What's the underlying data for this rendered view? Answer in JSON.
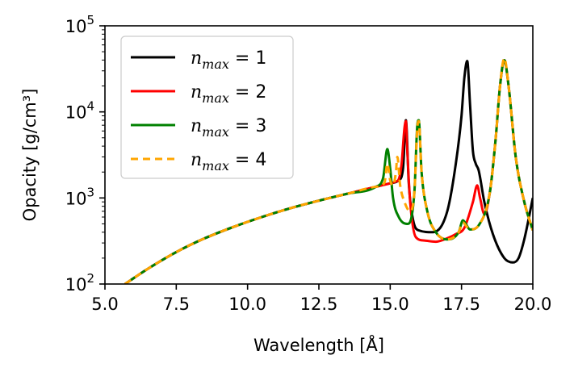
{
  "chart_data": {
    "type": "line",
    "xlabel": "Wavelength [Å]",
    "ylabel": "Opacity [g/cm³]",
    "xlim": [
      5.0,
      20.0
    ],
    "ylim": [
      100,
      100000
    ],
    "yscale": "log",
    "x_ticks": [
      "5.0",
      "7.5",
      "10.0",
      "12.5",
      "15.0",
      "17.5",
      "20.0"
    ],
    "y_ticks": [
      {
        "value": 100,
        "base": "10",
        "exp": "2"
      },
      {
        "value": 1000,
        "base": "10",
        "exp": "3"
      },
      {
        "value": 10000,
        "base": "10",
        "exp": "4"
      },
      {
        "value": 100000,
        "base": "10",
        "exp": "5"
      }
    ],
    "legend_position": "top-left",
    "series": [
      {
        "name": "n_max = 1",
        "label": "n",
        "sub": "max",
        "rhs": " = 1",
        "color": "#000000",
        "dash": "none",
        "x": [
          5.7,
          6.5,
          7.5,
          8.5,
          9.5,
          10.5,
          11.5,
          12.5,
          13.5,
          14.5,
          15.0,
          15.3,
          15.45,
          15.55,
          15.65,
          15.8,
          16.0,
          16.5,
          17.0,
          17.3,
          17.5,
          17.6,
          17.7,
          17.8,
          17.9,
          18.0,
          18.1,
          18.3,
          18.6,
          19.0,
          19.3,
          19.5,
          19.7,
          20.0
        ],
        "y": [
          100,
          150,
          235,
          340,
          460,
          600,
          760,
          930,
          1120,
          1350,
          1480,
          1600,
          2200,
          8000,
          1500,
          560,
          420,
          400,
          700,
          2500,
          9000,
          25000,
          39000,
          12000,
          3500,
          2500,
          2100,
          900,
          380,
          200,
          178,
          200,
          330,
          1000
        ]
      },
      {
        "name": "n_max = 2",
        "label": "n",
        "sub": "max",
        "rhs": " = 2",
        "color": "#ff0000",
        "dash": "none",
        "x": [
          5.7,
          6.5,
          7.5,
          8.5,
          9.5,
          10.5,
          11.5,
          12.5,
          13.5,
          14.5,
          15.0,
          15.2,
          15.3,
          15.4,
          15.5,
          15.55,
          15.6,
          15.7,
          15.9,
          16.2,
          16.6,
          17.0,
          17.3,
          17.6,
          17.9,
          18.05,
          18.15,
          18.3,
          18.5,
          18.7,
          18.85,
          19.0,
          19.15,
          19.4,
          19.7,
          20.0
        ],
        "y": [
          100,
          150,
          235,
          340,
          460,
          600,
          760,
          930,
          1120,
          1350,
          1480,
          1550,
          1650,
          2500,
          6500,
          7800,
          3500,
          900,
          350,
          320,
          310,
          340,
          380,
          450,
          900,
          1400,
          1000,
          650,
          1200,
          5000,
          20000,
          40000,
          20000,
          3000,
          900,
          420
        ]
      },
      {
        "name": "n_max = 3",
        "label": "n",
        "sub": "max",
        "rhs": " = 3",
        "color": "#008000",
        "dash": "none",
        "x": [
          5.7,
          6.5,
          7.5,
          8.5,
          9.5,
          10.5,
          11.5,
          12.5,
          13.5,
          14.5,
          14.75,
          14.9,
          15.0,
          15.1,
          15.3,
          15.6,
          15.85,
          15.95,
          16.0,
          16.1,
          16.3,
          16.6,
          17.0,
          17.4,
          17.55,
          17.65,
          17.8,
          18.1,
          18.5,
          18.7,
          18.85,
          19.0,
          19.15,
          19.4,
          19.7,
          20.0
        ],
        "y": [
          100,
          150,
          235,
          340,
          460,
          600,
          760,
          930,
          1120,
          1350,
          1700,
          3700,
          2200,
          1000,
          600,
          500,
          1200,
          7000,
          8000,
          2000,
          700,
          400,
          330,
          400,
          550,
          500,
          430,
          480,
          1200,
          5000,
          20000,
          40000,
          20000,
          3000,
          900,
          420
        ]
      },
      {
        "name": "n_max = 4",
        "label": "n",
        "sub": "max",
        "rhs": " = 4",
        "color": "#ffa500",
        "dash": "9,6",
        "x": [
          5.7,
          6.5,
          7.5,
          8.5,
          9.5,
          10.5,
          11.5,
          12.5,
          13.5,
          14.5,
          14.8,
          14.9,
          15.0,
          15.1,
          15.2,
          15.25,
          15.35,
          15.5,
          15.7,
          15.85,
          15.95,
          16.0,
          16.1,
          16.3,
          16.6,
          17.0,
          17.4,
          17.55,
          17.65,
          17.8,
          18.1,
          18.5,
          18.7,
          18.85,
          19.0,
          19.15,
          19.4,
          19.7,
          20.0
        ],
        "y": [
          100,
          150,
          235,
          340,
          460,
          600,
          760,
          930,
          1120,
          1350,
          1500,
          2500,
          1600,
          1400,
          2000,
          3000,
          1400,
          900,
          700,
          1200,
          6500,
          7800,
          2000,
          700,
          400,
          330,
          400,
          520,
          480,
          430,
          480,
          1200,
          5000,
          20000,
          42000,
          20000,
          3000,
          900,
          420
        ]
      }
    ]
  }
}
